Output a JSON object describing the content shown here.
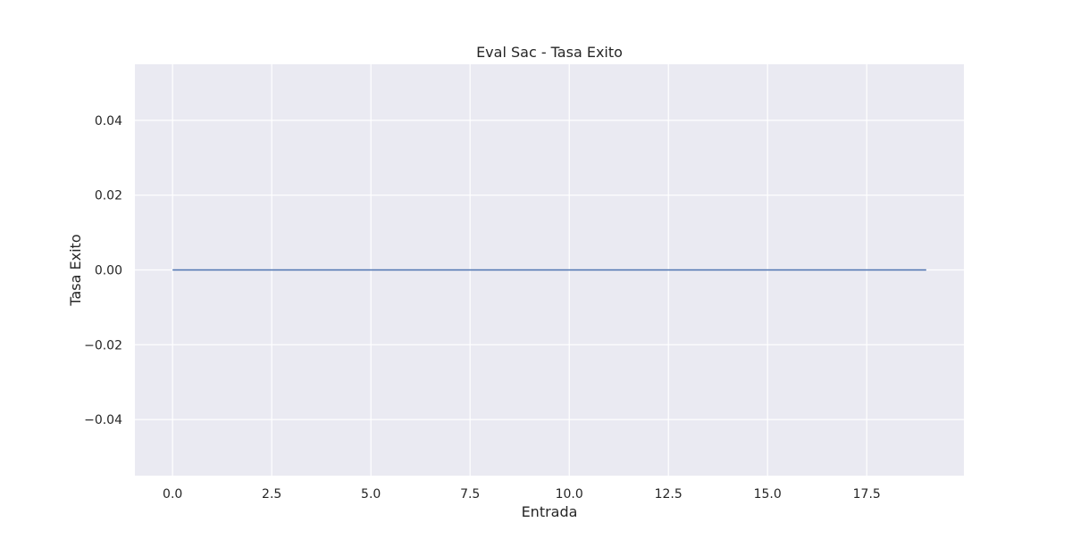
{
  "chart_data": {
    "type": "line",
    "title": "Eval Sac - Tasa Exito",
    "xlabel": "Entrada",
    "ylabel": "Tasa Exito",
    "xlim": [
      -0.95,
      19.95
    ],
    "ylim": [
      -0.055,
      0.055
    ],
    "xticks": [
      0.0,
      2.5,
      5.0,
      7.5,
      10.0,
      12.5,
      15.0,
      17.5
    ],
    "xtick_labels": [
      "0.0",
      "2.5",
      "5.0",
      "7.5",
      "10.0",
      "12.5",
      "15.0",
      "17.5"
    ],
    "yticks": [
      0.04,
      0.02,
      0.0,
      -0.02,
      -0.04
    ],
    "ytick_labels": [
      "0.04",
      "0.02",
      "0.00",
      "−0.02",
      "−0.04"
    ],
    "grid": true,
    "background": "#eaeaf2",
    "grid_color": "#ffffff",
    "series": [
      {
        "color": "#4c72b0",
        "x": [
          0,
          1,
          2,
          3,
          4,
          5,
          6,
          7,
          8,
          9,
          10,
          11,
          12,
          13,
          14,
          15,
          16,
          17,
          18,
          19
        ],
        "y": [
          0,
          0,
          0,
          0,
          0,
          0,
          0,
          0,
          0,
          0,
          0,
          0,
          0,
          0,
          0,
          0,
          0,
          0,
          0,
          0
        ]
      }
    ]
  }
}
